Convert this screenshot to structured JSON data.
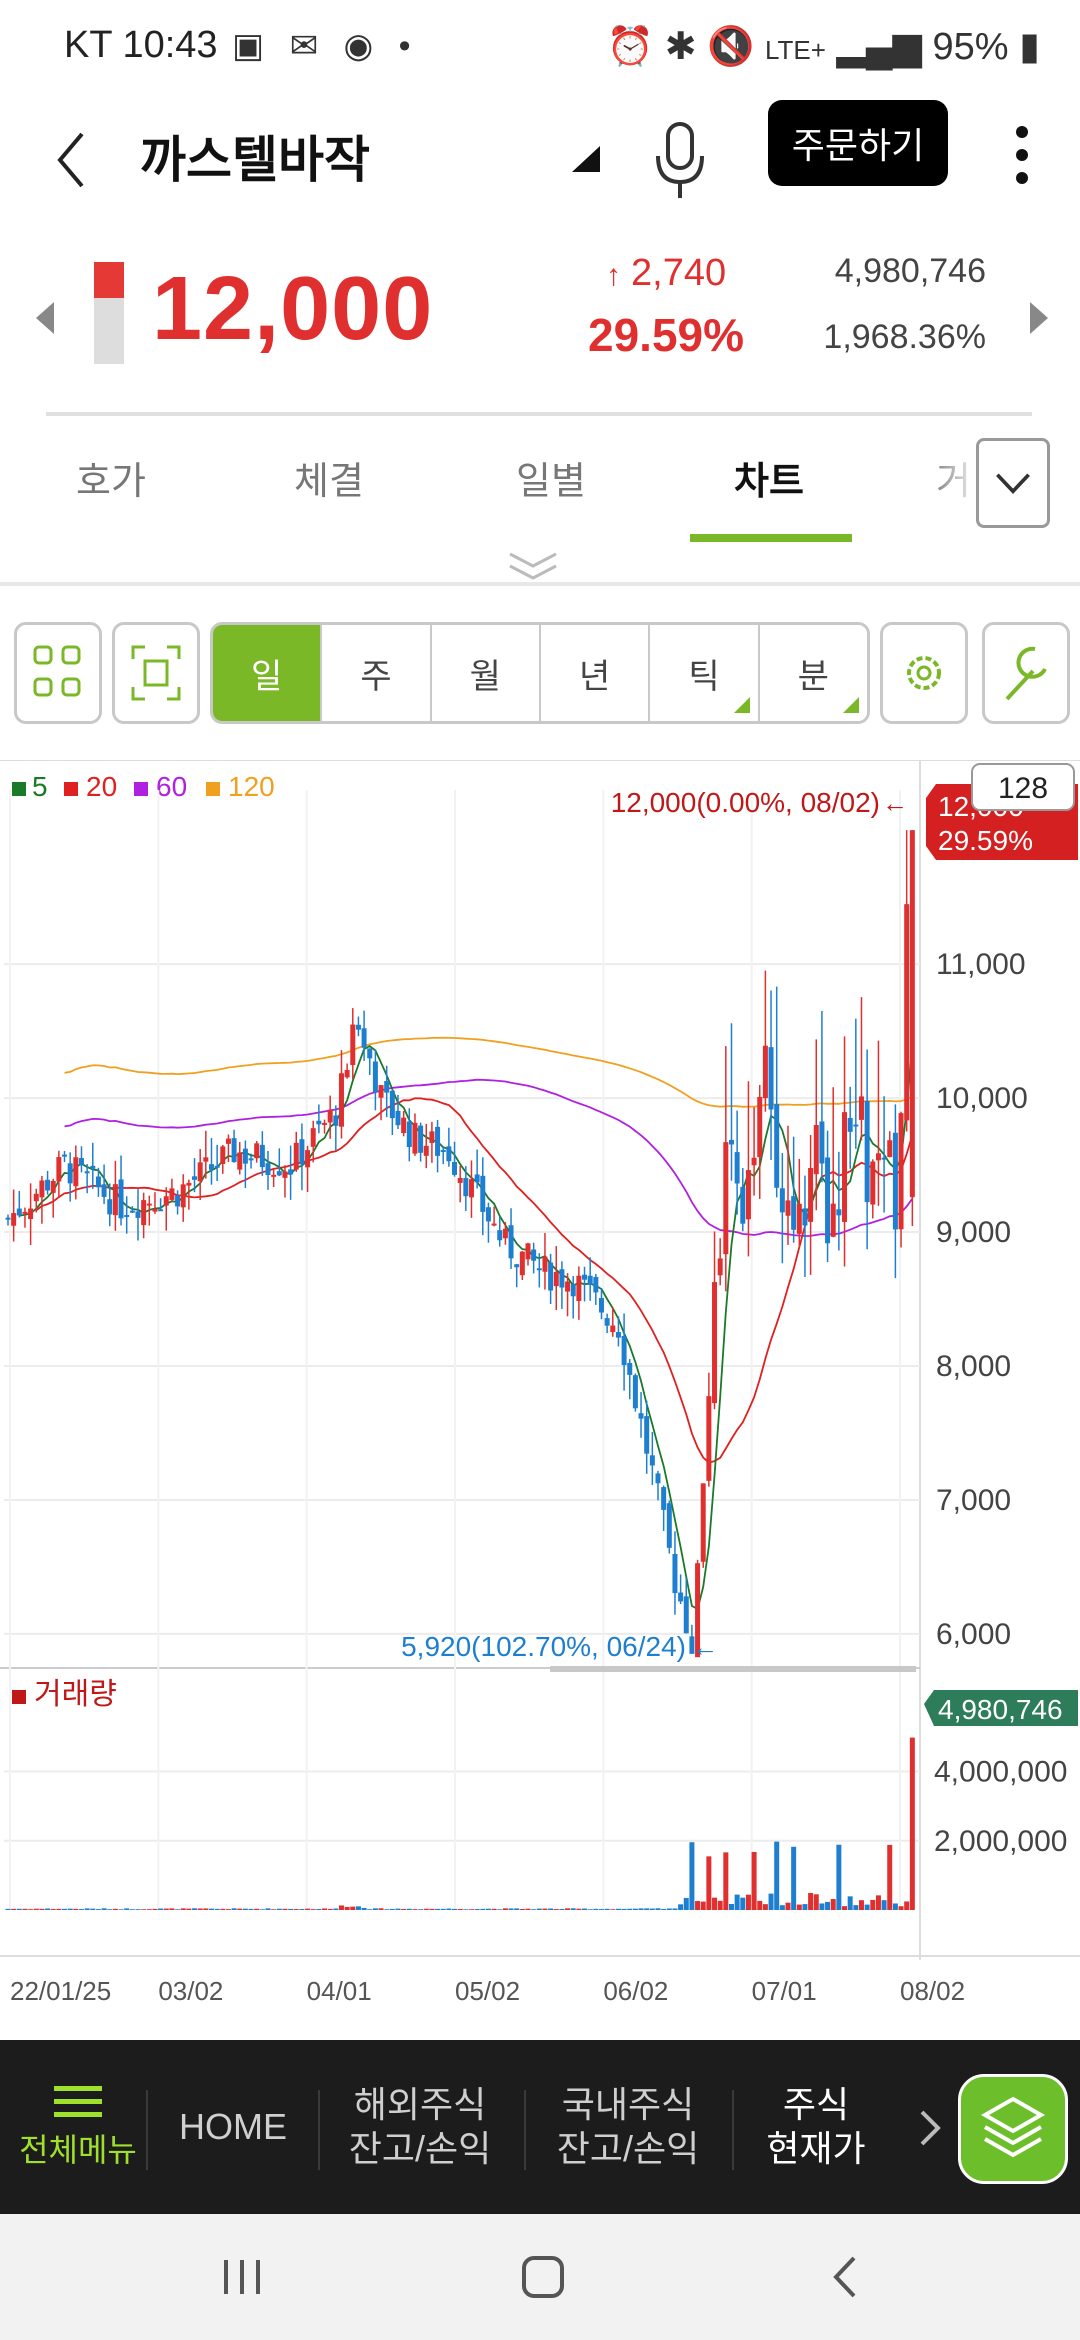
{
  "status_bar": {
    "carrier": "KT",
    "time": "10:43",
    "left_icons": "▣ ✉ ◉ •",
    "network": "LTE+",
    "battery": "95%"
  },
  "header": {
    "stock_name": "까스텔바작",
    "order_button": "주문하기"
  },
  "price": {
    "current": "12,000",
    "change": "2,740",
    "change_arrow": "↑",
    "change_pct": "29.59%",
    "volume": "4,980,746",
    "volume_ratio": "1,968.36%",
    "level_fraction": 0.35
  },
  "tabs": [
    "호가",
    "체결",
    "일별",
    "차트",
    "거"
  ],
  "active_tab": "차트",
  "periods": [
    "일",
    "주",
    "월",
    "년",
    "틱",
    "분"
  ],
  "active_period": "일",
  "colors": {
    "accent_green": "#7ab828",
    "up_red": "#e02f2f",
    "down_blue": "#1e7fd0",
    "ma5": "#1a7a2a",
    "ma20": "#e02020",
    "ma60": "#b020e0",
    "ma120": "#f0a020"
  },
  "chart_data": {
    "type": "candlestick",
    "legend": [
      {
        "label": "5",
        "color": "#1a7a2a"
      },
      {
        "label": "20",
        "color": "#e02020"
      },
      {
        "label": "60",
        "color": "#b020e0"
      },
      {
        "label": "120",
        "color": "#f0a020"
      }
    ],
    "y_ticks": [
      "11,000",
      "10,000",
      "9,000",
      "8,000",
      "7,000",
      "6,000"
    ],
    "y_range": [
      5880,
      12300
    ],
    "x_ticks": [
      "22/01/25",
      "03/02",
      "04/01",
      "05/02",
      "06/02",
      "07/01",
      "08/02"
    ],
    "current_price_tag": "12,000",
    "current_pct_tag": "29.59%",
    "count_badge": "128",
    "high_annotation": "12,000(0.00%, 08/02)",
    "low_annotation": "5,920(102.70%, 06/24)",
    "volume_label": "거래량",
    "volume_tag": "4,980,746",
    "volume_ticks": [
      "4,000,000",
      "2,000,000"
    ],
    "volume_range": [
      0,
      5200000
    ]
  },
  "bottom_menu": {
    "all_menu": "전체메뉴",
    "items": [
      {
        "line1": "HOME",
        "line2": ""
      },
      {
        "line1": "해외주식",
        "line2": "잔고/손익"
      },
      {
        "line1": "국내주식",
        "line2": "잔고/손익"
      },
      {
        "line1": "주식",
        "line2": "현재가"
      }
    ]
  }
}
